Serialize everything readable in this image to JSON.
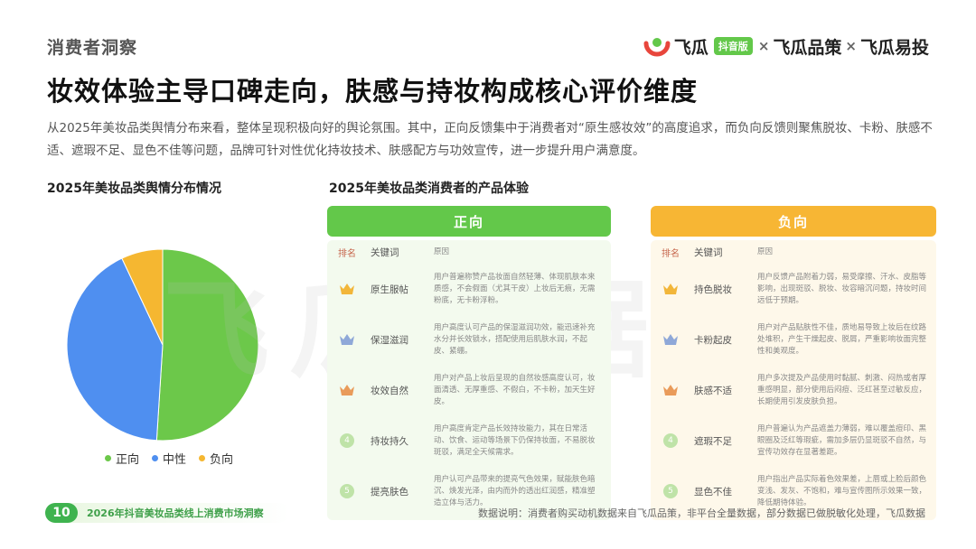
{
  "header": {
    "section_label": "消费者洞察",
    "brand": {
      "name1": "飞瓜",
      "badge": "抖音版",
      "sep": "×",
      "name2": "飞瓜品策",
      "name3": "飞瓜易投",
      "colors": {
        "logo_red": "#e8463c",
        "logo_green": "#63c84a"
      }
    }
  },
  "headline": "妆效体验主导口碑走向，肤感与持妆构成核心评价维度",
  "intro": "从2025年美妆品类舆情分布来看，整体呈现积极向好的舆论氛围。其中，正向反馈集中于消费者对“原生感妆效”的高度追求，而负向反馈则聚焦脱妆、卡粉、肤感不适、遮瑕不足、显色不佳等问题，品牌可针对性优化持妆技术、肤感配方与功效宣传，进一步提升用户满意度。",
  "pie_title": "2025年美妆品类舆情分布情况",
  "experience_title": "2025年美妆品类消费者的产品体验",
  "chart_data": {
    "type": "pie",
    "title": "2025年美妆品类舆情分布情况",
    "categories": [
      "正向",
      "中性",
      "负向"
    ],
    "values": [
      51,
      42,
      7
    ],
    "colors": [
      "#6cc84a",
      "#4f8ff0",
      "#f5b731"
    ],
    "legend_position": "bottom"
  },
  "positive": {
    "title": "正向",
    "col_rank": "排名",
    "col_key": "关键词",
    "col_reason": "原因",
    "rows": [
      {
        "rank": "1",
        "icon": "crown-gold-icon",
        "keyword": "原生服帖",
        "reason": "用户普遍称赞产品妆面自然轻薄、体现肌肤本来质感，不会假面（尤其干皮）上妆后无痕，无需粉底，无卡粉浮粉。"
      },
      {
        "rank": "2",
        "icon": "crown-silver-icon",
        "keyword": "保湿滋润",
        "reason": "用户高度认可产品的保湿滋润功效，能迅速补充水分并长效锁水，搭配使用后肌肤水润，不起皮、紧绷。"
      },
      {
        "rank": "3",
        "icon": "crown-bronze-icon",
        "keyword": "妆效自然",
        "reason": "用户对产品上妆后呈现的自然妆感高度认可，妆面清透、无厚重感、不假白，不卡粉，加天生好皮。"
      },
      {
        "rank": "4",
        "icon": "circle-4-icon",
        "keyword": "持妆持久",
        "reason": "用户高度肯定产品长效持妆能力，其在日常活动、饮食、运动等场景下仍保持妆面，不易脱妆斑驳，满足全天候需求。"
      },
      {
        "rank": "5",
        "icon": "circle-5-icon",
        "keyword": "提亮肤色",
        "reason": "用户认可产品带来的提亮气色效果，赋能肤色暗沉、焕发光泽，由内而外的透出红润感，精准塑造立体与活力。"
      }
    ]
  },
  "negative": {
    "title": "负向",
    "col_rank": "排名",
    "col_key": "关键词",
    "col_reason": "原因",
    "rows": [
      {
        "rank": "1",
        "icon": "crown-gold-icon",
        "keyword": "持色脱妆",
        "reason": "用户反馈产品附着力弱，易受摩擦、汗水、皮脂等影响，出现斑驳、脱妆、妆容暗沉问题，持妆时间远低于预期。"
      },
      {
        "rank": "2",
        "icon": "crown-silver-icon",
        "keyword": "卡粉起皮",
        "reason": "用户对产品贴肤性不佳，质地易导致上妆后在纹路处堆积，产生干燥起皮、脱屑，严重影响妆面完整性和美观度。"
      },
      {
        "rank": "3",
        "icon": "crown-bronze-icon",
        "keyword": "肤感不适",
        "reason": "用户多次提及产品使用时黏腻、刺激、闷热或者厚重感明显，部分使用后闷痘、泛红甚至过敏反应，长期使用引发皮肤负担。"
      },
      {
        "rank": "4",
        "icon": "circle-4-icon",
        "keyword": "遮瑕不足",
        "reason": "用户普遍认为产品遮盖力薄弱，难以覆盖痘印、黑眼圈及泛红等瑕疵，需加多层仍显斑驳不自然，与宣传功效存在显著差距。"
      },
      {
        "rank": "5",
        "icon": "circle-5-icon",
        "keyword": "显色不佳",
        "reason": "用户指出产品实际着色效果差，上唇或上脸后颜色变浅、发灰、不饱和，难与宣传图所示效果一致，降低期待体验。"
      }
    ]
  },
  "watermark": "飞瓜数据",
  "footer": {
    "page_number": "10",
    "report_title": "2026年抖音美妆品类线上消费市场洞察",
    "note": "数据说明：消费者购买动机数据来自飞瓜品策，非平台全量数据，部分数据已做脱敏化处理，飞瓜数据"
  }
}
